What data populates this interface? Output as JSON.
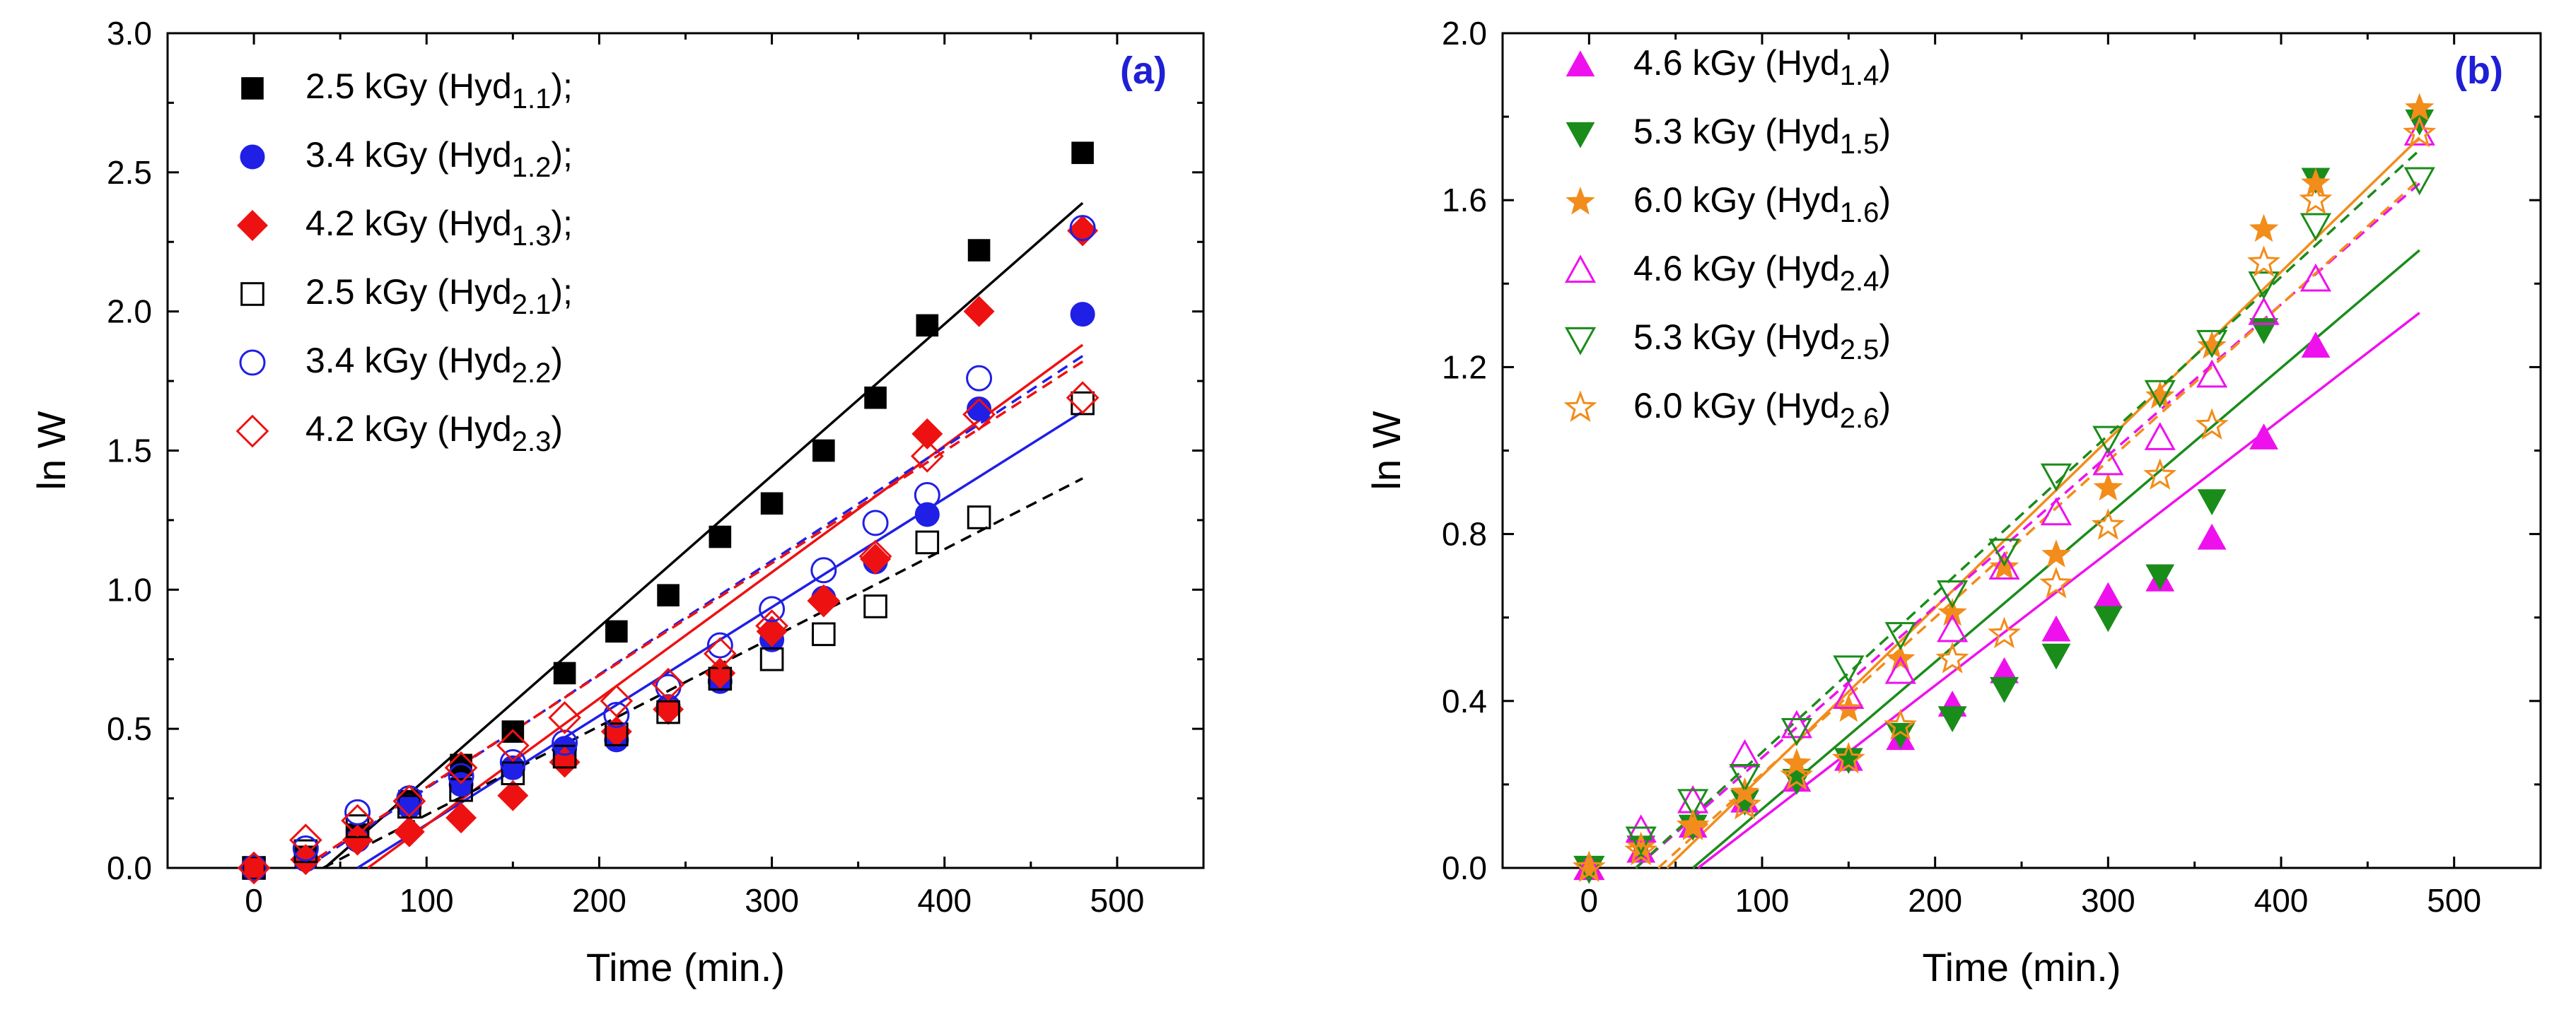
{
  "chart_data": [
    {
      "type": "scatter",
      "panel_label": "(a)",
      "panel_label_color": "#1f1fd6",
      "xlabel": "Time (min.)",
      "ylabel": "ln W",
      "xlim": [
        -50,
        550
      ],
      "ylim": [
        0,
        3.0
      ],
      "xticks": [
        0,
        100,
        200,
        300,
        400,
        500
      ],
      "xtick_labels": [
        "0",
        "100",
        "200",
        "300",
        "400",
        "500"
      ],
      "yticks": [
        0,
        0.5,
        1.0,
        1.5,
        2.0,
        2.5,
        3.0
      ],
      "ytick_labels": [
        "0.0",
        "0.5",
        "1.0",
        "1.5",
        "2.0",
        "2.5",
        "3.0"
      ],
      "legend_position": "top-left",
      "series": [
        {
          "name": "2.5 kGy (Hyd1.1);",
          "label_base": "2.5 kGy (Hyd",
          "label_sub": "1.1",
          "label_tail": ");",
          "color": "#000000",
          "marker": "square",
          "filled": true,
          "x": [
            0,
            30,
            60,
            90,
            120,
            150,
            180,
            210,
            240,
            270,
            300,
            330,
            360,
            390,
            420,
            480
          ],
          "y": [
            0,
            0.04,
            0.12,
            0.24,
            0.37,
            0.49,
            0.7,
            0.85,
            0.98,
            1.19,
            1.31,
            1.5,
            1.69,
            1.95,
            2.22,
            2.57
          ],
          "fit": {
            "x": [
              41,
              480
            ],
            "y": [
              0,
              2.39
            ],
            "dash": false
          }
        },
        {
          "name": "3.4 kGy (Hyd1.2);",
          "label_base": "3.4 kGy (Hyd",
          "label_sub": "1.2",
          "label_tail": ");",
          "color": "#1f1fe6",
          "marker": "circle",
          "filled": true,
          "x": [
            0,
            30,
            60,
            90,
            120,
            150,
            180,
            210,
            240,
            270,
            300,
            330,
            360,
            390,
            420,
            480
          ],
          "y": [
            0,
            0.03,
            0.1,
            0.22,
            0.3,
            0.36,
            0.43,
            0.46,
            0.58,
            0.67,
            0.82,
            0.97,
            1.1,
            1.27,
            1.65,
            1.99
          ],
          "fit": {
            "x": [
              60,
              480
            ],
            "y": [
              0,
              1.64
            ],
            "dash": false
          }
        },
        {
          "name": "4.2 kGy (Hyd1.3);",
          "label_base": "4.2 kGy (Hyd",
          "label_sub": "1.3",
          "label_tail": ");",
          "color": "#ee1111",
          "marker": "diamond",
          "filled": true,
          "x": [
            0,
            30,
            60,
            90,
            120,
            150,
            180,
            210,
            240,
            270,
            300,
            330,
            360,
            390,
            420,
            480
          ],
          "y": [
            0,
            0.03,
            0.1,
            0.13,
            0.18,
            0.26,
            0.38,
            0.49,
            0.57,
            0.7,
            0.85,
            0.96,
            1.11,
            1.56,
            2.0,
            2.29
          ],
          "fit": {
            "x": [
              66,
              480
            ],
            "y": [
              0,
              1.88
            ],
            "dash": false
          }
        },
        {
          "name": "2.5 kGy (Hyd2.1);",
          "label_base": "2.5 kGy (Hyd",
          "label_sub": "2.1",
          "label_tail": ");",
          "color": "#000000",
          "marker": "square",
          "filled": false,
          "x": [
            0,
            30,
            60,
            90,
            120,
            150,
            180,
            210,
            240,
            270,
            300,
            330,
            360,
            390,
            420,
            480
          ],
          "y": [
            0,
            0.06,
            0.15,
            0.22,
            0.28,
            0.34,
            0.4,
            0.48,
            0.56,
            0.68,
            0.75,
            0.84,
            0.94,
            1.17,
            1.26,
            1.67
          ],
          "fit": {
            "x": [
              40,
              480
            ],
            "y": [
              0,
              1.4
            ],
            "dash": true
          }
        },
        {
          "name": "3.4 kGy (Hyd2.2)",
          "label_base": "3.4 kGy (Hyd",
          "label_sub": "2.2",
          "label_tail": ")",
          "color": "#1f1fe6",
          "marker": "circle",
          "filled": false,
          "x": [
            0,
            30,
            60,
            90,
            120,
            150,
            180,
            210,
            240,
            270,
            300,
            330,
            360,
            390,
            420,
            480
          ],
          "y": [
            0,
            0.07,
            0.2,
            0.25,
            0.33,
            0.38,
            0.45,
            0.55,
            0.65,
            0.8,
            0.93,
            1.07,
            1.24,
            1.34,
            1.76,
            2.3
          ],
          "fit": {
            "x": [
              30,
              480
            ],
            "y": [
              0,
              1.84
            ],
            "dash": true
          }
        },
        {
          "name": "4.2 kGy (Hyd2.3)",
          "label_base": "4.2 kGy (Hyd",
          "label_sub": "2.3",
          "label_tail": ")",
          "color": "#ee1111",
          "marker": "diamond",
          "filled": false,
          "x": [
            0,
            30,
            60,
            90,
            120,
            150,
            180,
            210,
            240,
            270,
            300,
            330,
            360,
            390,
            420,
            480
          ],
          "y": [
            0,
            0.1,
            0.17,
            0.24,
            0.36,
            0.44,
            0.54,
            0.6,
            0.66,
            0.77,
            0.87,
            0.96,
            1.12,
            1.48,
            1.63,
            1.69
          ],
          "fit": {
            "x": [
              28,
              480
            ],
            "y": [
              0,
              1.82
            ],
            "dash": true
          }
        }
      ]
    },
    {
      "type": "scatter",
      "panel_label": "(b)",
      "panel_label_color": "#1f1fd6",
      "xlabel": "Time (min.)",
      "ylabel": "ln W",
      "xlim": [
        -50,
        550
      ],
      "ylim": [
        0,
        2.0
      ],
      "xticks": [
        0,
        100,
        200,
        300,
        400,
        500
      ],
      "xtick_labels": [
        "0",
        "100",
        "200",
        "300",
        "400",
        "500"
      ],
      "yticks": [
        0,
        0.4,
        0.8,
        1.2,
        1.6,
        2.0
      ],
      "ytick_labels": [
        "0.0",
        "0.4",
        "0.8",
        "1.2",
        "1.6",
        "2.0"
      ],
      "legend_position": "top-left",
      "series": [
        {
          "name": "4.6 kGy (Hyd1.4)",
          "label_base": "4.6 kGy (Hyd",
          "label_sub": "1.4",
          "label_tail": ")",
          "color": "#ee11ee",
          "marker": "triangle-up",
          "filled": true,
          "x": [
            0,
            30,
            60,
            90,
            120,
            150,
            180,
            210,
            240,
            270,
            300,
            330,
            360,
            390,
            420
          ],
          "y": [
            0,
            0.04,
            0.1,
            0.16,
            0.21,
            0.26,
            0.31,
            0.39,
            0.47,
            0.57,
            0.65,
            0.69,
            0.79,
            1.03,
            1.25
          ],
          "fit": {
            "x": [
              63,
              480
            ],
            "y": [
              0,
              1.33
            ],
            "dash": false
          }
        },
        {
          "name": "5.3 kGy (Hyd1.5)",
          "label_base": "5.3 kGy (Hyd",
          "label_sub": "1.5",
          "label_tail": ")",
          "color": "#1a8c1a",
          "marker": "triangle-down",
          "filled": true,
          "x": [
            0,
            30,
            60,
            90,
            120,
            150,
            180,
            210,
            240,
            270,
            300,
            330,
            360,
            390,
            420,
            480
          ],
          "y": [
            0,
            0.05,
            0.1,
            0.16,
            0.21,
            0.26,
            0.32,
            0.36,
            0.43,
            0.51,
            0.6,
            0.7,
            0.88,
            1.29,
            1.65,
            1.79
          ],
          "fit": {
            "x": [
              60,
              480
            ],
            "y": [
              0,
              1.48
            ],
            "dash": false
          }
        },
        {
          "name": "6.0 kGy (Hyd1.6)",
          "label_base": "6.0 kGy (Hyd",
          "label_sub": "1.6",
          "label_tail": ")",
          "color": "#f28c1a",
          "marker": "star",
          "filled": true,
          "x": [
            0,
            30,
            60,
            90,
            120,
            150,
            180,
            210,
            240,
            270,
            300,
            330,
            360,
            390,
            420,
            480
          ],
          "y": [
            0,
            0.05,
            0.1,
            0.18,
            0.25,
            0.38,
            0.5,
            0.61,
            0.72,
            0.75,
            0.91,
            1.13,
            1.25,
            1.53,
            1.64,
            1.82
          ],
          "fit": {
            "x": [
              45,
              480
            ],
            "y": [
              0,
              1.75
            ],
            "dash": false
          }
        },
        {
          "name": "4.6 kGy (Hyd2.4)",
          "label_base": "4.6 kGy (Hyd",
          "label_sub": "2.4",
          "label_tail": ")",
          "color": "#ee11ee",
          "marker": "triangle-up",
          "filled": false,
          "x": [
            0,
            30,
            60,
            90,
            120,
            150,
            180,
            210,
            240,
            270,
            300,
            330,
            360,
            390,
            420,
            480
          ],
          "y": [
            0,
            0.09,
            0.16,
            0.27,
            0.34,
            0.41,
            0.47,
            0.57,
            0.72,
            0.85,
            0.97,
            1.03,
            1.18,
            1.33,
            1.41,
            1.76
          ],
          "fit": {
            "x": [
              27,
              480
            ],
            "y": [
              0,
              1.64
            ],
            "dash": true
          }
        },
        {
          "name": "5.3 kGy (Hyd2.5)",
          "label_base": "5.3 kGy (Hyd",
          "label_sub": "2.5",
          "label_tail": ")",
          "color": "#1a8c1a",
          "marker": "triangle-down",
          "filled": false,
          "x": [
            0,
            30,
            60,
            90,
            120,
            150,
            180,
            210,
            240,
            270,
            300,
            330,
            360,
            390,
            420,
            480
          ],
          "y": [
            0,
            0.07,
            0.16,
            0.22,
            0.33,
            0.48,
            0.56,
            0.66,
            0.76,
            0.94,
            1.03,
            1.14,
            1.26,
            1.4,
            1.54,
            1.65
          ],
          "fit": {
            "x": [
              27,
              480
            ],
            "y": [
              0,
              1.72
            ],
            "dash": true
          }
        },
        {
          "name": "6.0 kGy (Hyd2.6)",
          "label_base": "6.0 kGy (Hyd",
          "label_sub": "2.6",
          "label_tail": ")",
          "color": "#f28c1a",
          "marker": "star",
          "filled": false,
          "x": [
            0,
            30,
            60,
            90,
            120,
            150,
            180,
            210,
            240,
            270,
            300,
            330,
            360,
            390,
            420,
            480
          ],
          "y": [
            0,
            0.04,
            0.1,
            0.15,
            0.22,
            0.26,
            0.34,
            0.5,
            0.56,
            0.68,
            0.82,
            0.94,
            1.06,
            1.45,
            1.6,
            1.76
          ],
          "fit": {
            "x": [
              40,
              480
            ],
            "y": [
              0,
              1.65
            ],
            "dash": true
          }
        }
      ]
    }
  ]
}
